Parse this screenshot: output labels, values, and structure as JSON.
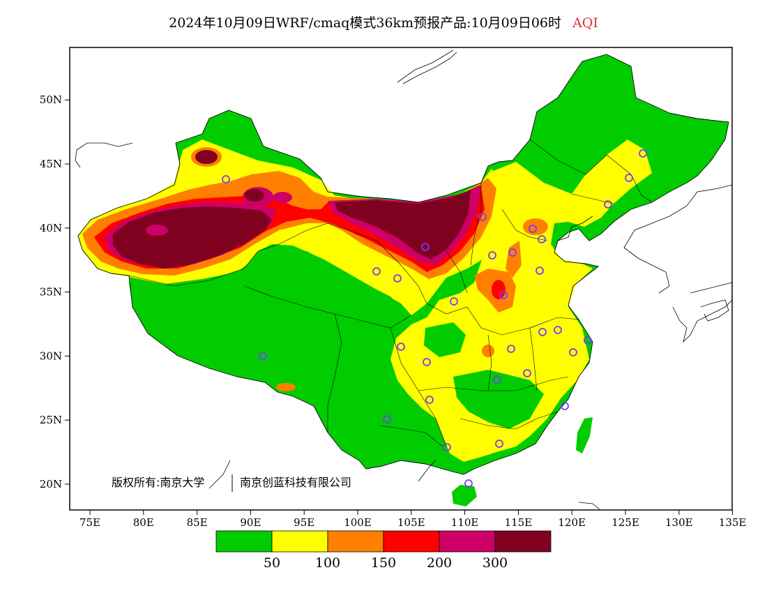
{
  "title": {
    "main": "2024年10月09日WRF/cmaq模式36km预报产品:10月09日06时",
    "variable": "AQI"
  },
  "copyright": {
    "left": "版权所有:南京大学",
    "right": "南京创蓝科技有限公司"
  },
  "axes": {
    "lon_ticks": [
      "75E",
      "80E",
      "85E",
      "90E",
      "95E",
      "100E",
      "105E",
      "110E",
      "115E",
      "120E",
      "125E",
      "130E",
      "135E"
    ],
    "lat_ticks": [
      "20N",
      "25N",
      "30N",
      "35N",
      "40N",
      "45N",
      "50N"
    ]
  },
  "legend": {
    "colors": [
      "#00cc00",
      "#ffff00",
      "#ff8000",
      "#ff0000",
      "#cc0066",
      "#800020"
    ],
    "labels": [
      "50",
      "100",
      "150",
      "200",
      "300"
    ]
  },
  "colors": {
    "good": "#00cc00",
    "moderate": "#ffff00",
    "usg": "#ff8000",
    "unhealthy": "#ff0000",
    "very_unhealthy": "#cc0066",
    "hazardous": "#800020",
    "station_ring": "#7a3cff"
  }
}
